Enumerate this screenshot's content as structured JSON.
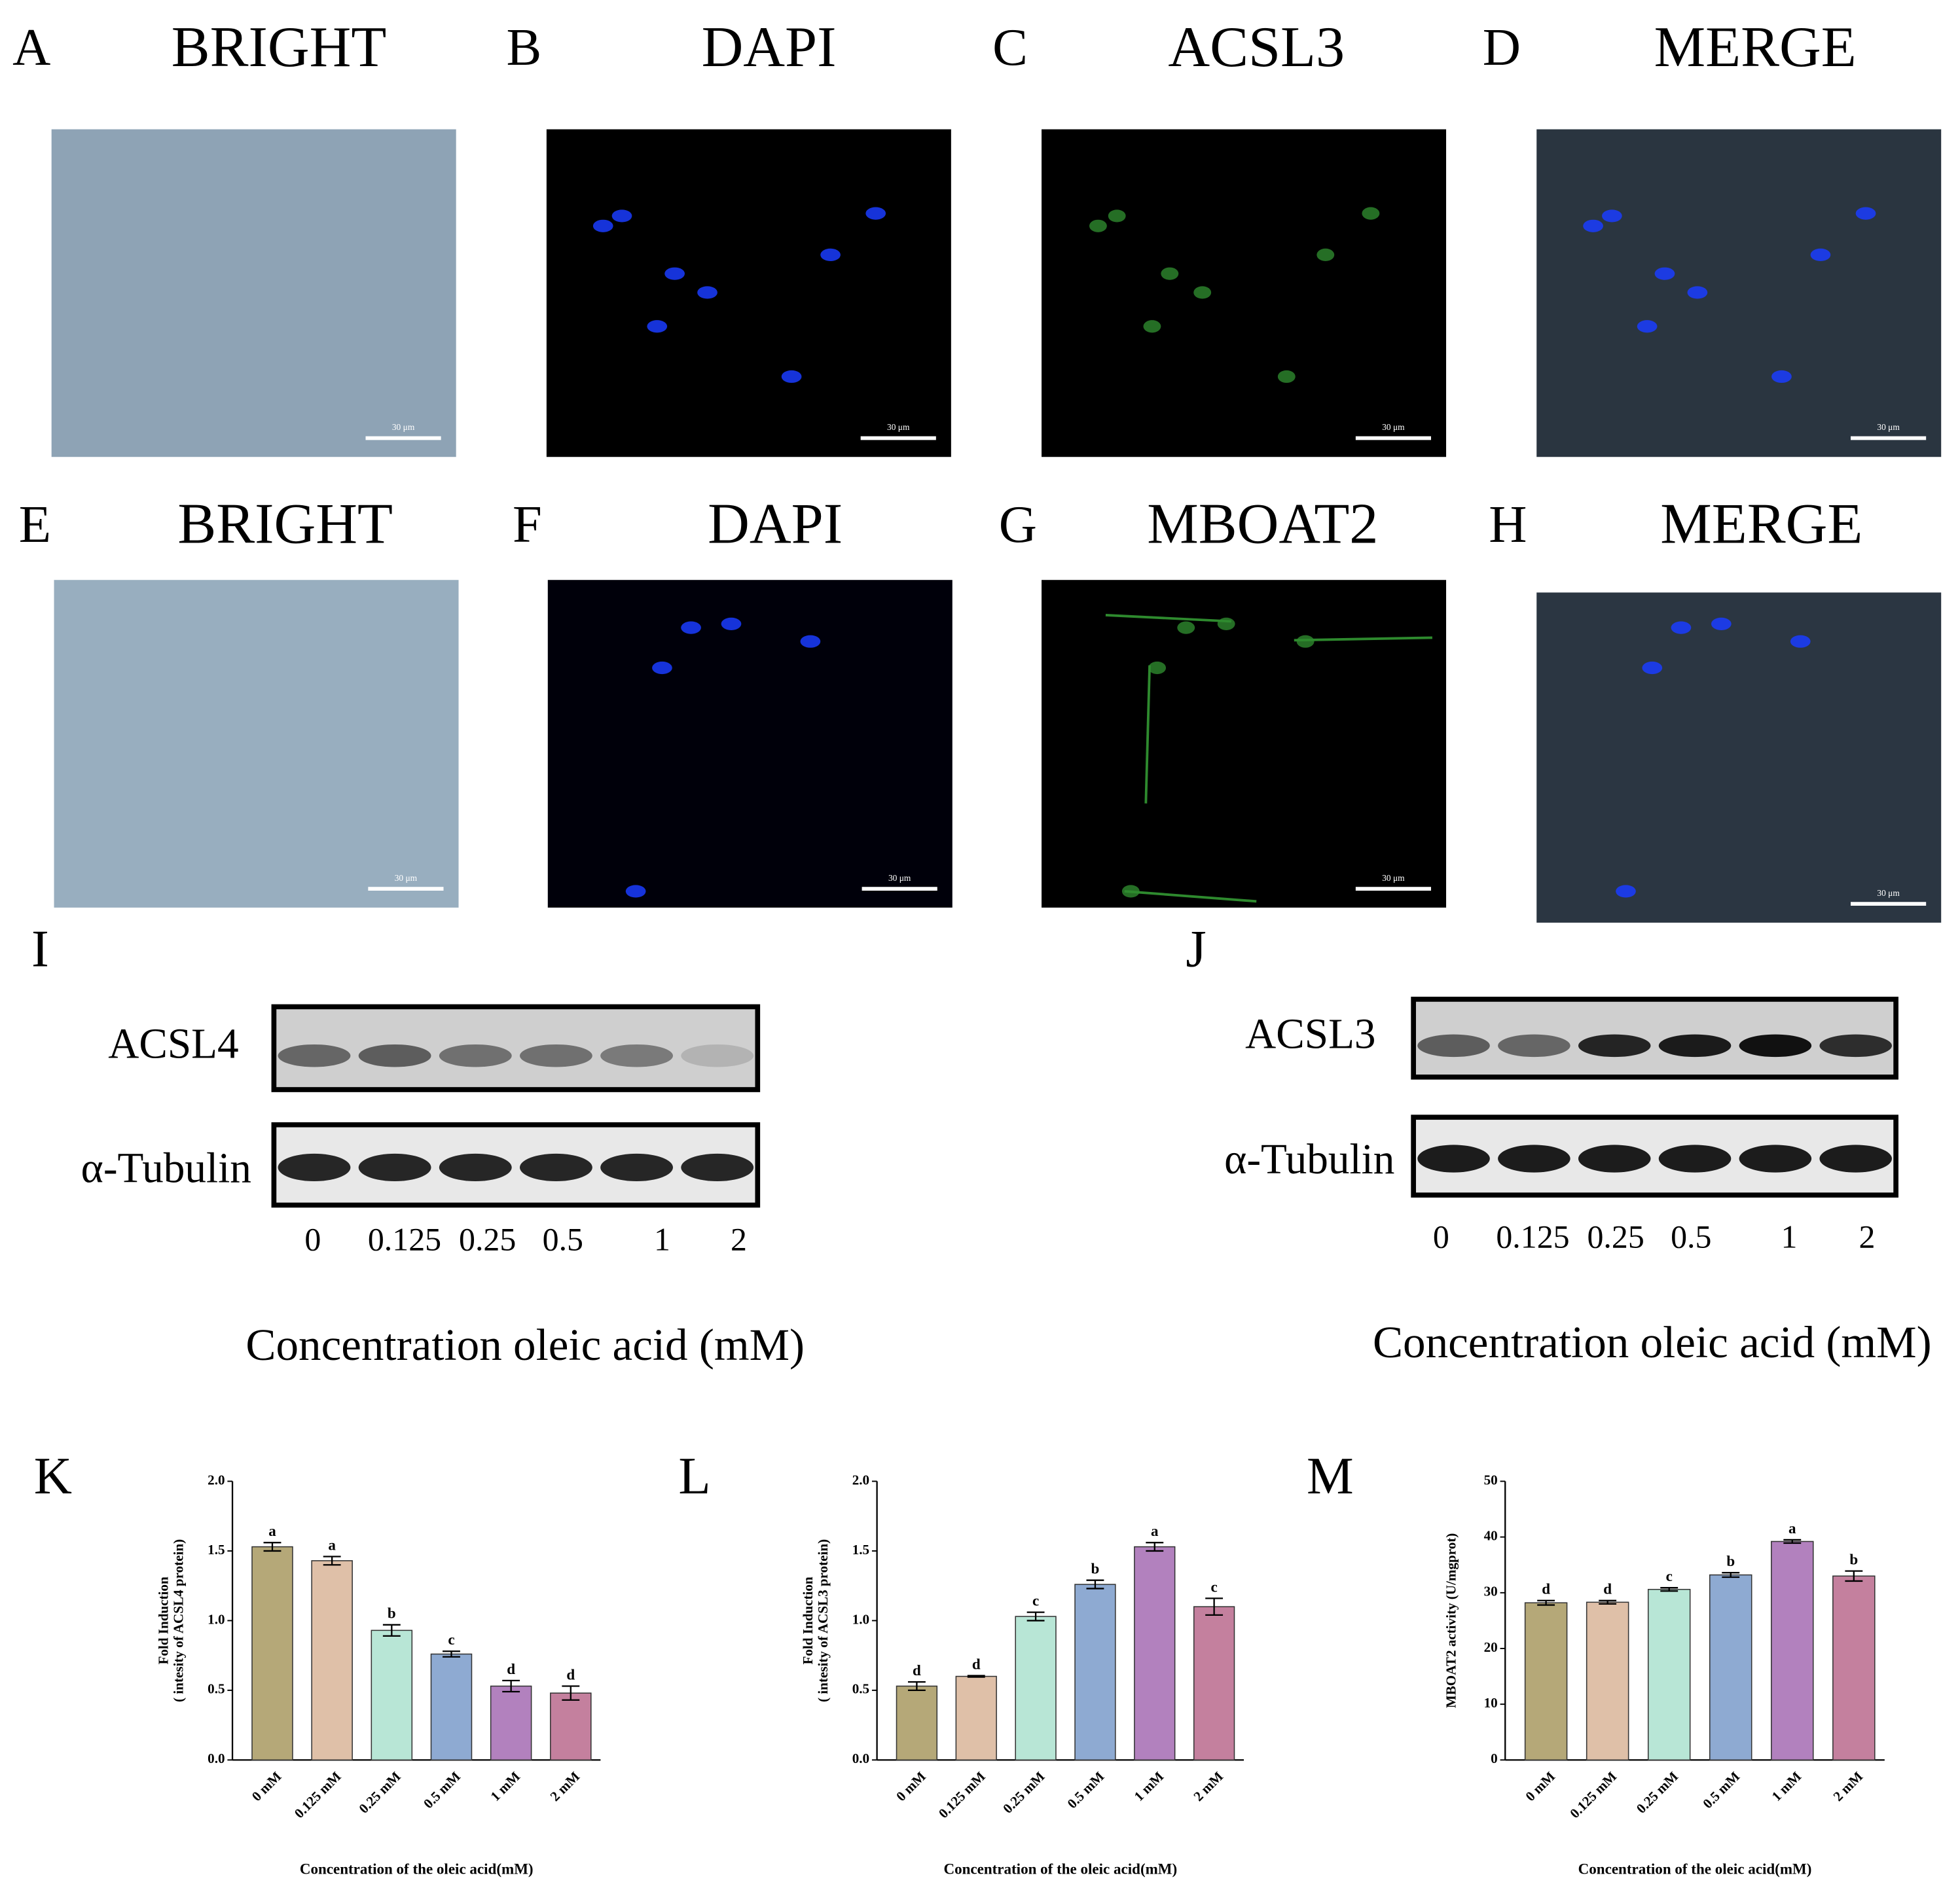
{
  "figure": {
    "panels": [
      {
        "label": "A",
        "title": "BRIGHT",
        "scale_bar": "30 μm"
      },
      {
        "label": "B",
        "title": "DAPI",
        "scale_bar": "30 μm"
      },
      {
        "label": "C",
        "title": "ACSL3",
        "scale_bar": "30 μm"
      },
      {
        "label": "D",
        "title": "MERGE",
        "scale_bar": "30 μm"
      },
      {
        "label": "E",
        "title": "BRIGHT",
        "scale_bar": "30 μm"
      },
      {
        "label": "F",
        "title": "DAPI",
        "scale_bar": "30 μm"
      },
      {
        "label": "G",
        "title": "MBOAT2",
        "scale_bar": "30 μm"
      },
      {
        "label": "H",
        "title": "MERGE",
        "scale_bar": "30 μm"
      }
    ],
    "blots": [
      {
        "label": "I",
        "rows": [
          "ACSL4",
          "α-Tubulin"
        ],
        "lanes": [
          "0",
          "0.125",
          "0.25",
          "0.5",
          "1",
          "2"
        ],
        "x_label": "Concentration oleic acid (mM)"
      },
      {
        "label": "J",
        "rows": [
          "ACSL3",
          "α-Tubulin"
        ],
        "lanes": [
          "0",
          "0.125",
          "0.25",
          "0.5",
          "1",
          "2"
        ],
        "x_label": "Concentration oleic acid (mM)"
      }
    ]
  },
  "chart_data": [
    {
      "type": "bar",
      "panel": "K",
      "ylabel": [
        "Fold Induction",
        "( intesity of ACSL4 protein)"
      ],
      "xlabel": "Concentration of the oleic acid(mM)",
      "categories": [
        "0 mM",
        "0.125 mM",
        "0.25 mM",
        "0.5 mM",
        "1 mM",
        "2 mM"
      ],
      "values": [
        1.53,
        1.43,
        0.93,
        0.76,
        0.53,
        0.48
      ],
      "errors": [
        0.03,
        0.03,
        0.04,
        0.02,
        0.04,
        0.05
      ],
      "annotations": [
        "a",
        "a",
        "b",
        "c",
        "d",
        "d"
      ],
      "colors": [
        "#b5a878",
        "#dfc0a8",
        "#b8e6d6",
        "#8eaad2",
        "#b281be",
        "#c4809e"
      ],
      "ylim": [
        0,
        2
      ],
      "yticks": [
        {
          "value": 0,
          "label": "0.0"
        },
        {
          "value": 0.5,
          "label": "0.5"
        },
        {
          "value": 1,
          "label": "1.0"
        },
        {
          "value": 1.5,
          "label": "1.5"
        },
        {
          "value": 2,
          "label": "2.0"
        }
      ]
    },
    {
      "type": "bar",
      "panel": "L",
      "ylabel": [
        "Fold Induction",
        "( intesity of ACSL3 protein)"
      ],
      "xlabel": "Concentration of the oleic acid(mM)",
      "categories": [
        "0 mM",
        "0.125 mM",
        "0.25 mM",
        "0.5 mM",
        "1 mM",
        "2 mM"
      ],
      "values": [
        0.53,
        0.6,
        1.03,
        1.26,
        1.53,
        1.1
      ],
      "errors": [
        0.03,
        0.005,
        0.03,
        0.03,
        0.03,
        0.06
      ],
      "annotations": [
        "d",
        "d",
        "c",
        "b",
        "a",
        "c"
      ],
      "colors": [
        "#b5a878",
        "#dfc0a8",
        "#b8e6d6",
        "#8eaad2",
        "#b281be",
        "#c4809e"
      ],
      "ylim": [
        0,
        2
      ],
      "yticks": [
        {
          "value": 0,
          "label": "0.0"
        },
        {
          "value": 0.5,
          "label": "0.5"
        },
        {
          "value": 1,
          "label": "1.0"
        },
        {
          "value": 1.5,
          "label": "1.5"
        },
        {
          "value": 2,
          "label": "2.0"
        }
      ]
    },
    {
      "type": "bar",
      "panel": "M",
      "ylabel": [
        "MBOAT2 activity (U/mgprot)"
      ],
      "xlabel": "Concentration of the oleic acid(mM)",
      "categories": [
        "0 mM",
        "0.125 mM",
        "0.25 mM",
        "0.5 mM",
        "1 mM",
        "2 mM"
      ],
      "values": [
        28.2,
        28.3,
        30.6,
        33.2,
        39.2,
        33
      ],
      "errors": [
        0.4,
        0.3,
        0.3,
        0.4,
        0.3,
        0.9
      ],
      "annotations": [
        "d",
        "d",
        "c",
        "b",
        "a",
        "b"
      ],
      "colors": [
        "#b5a878",
        "#dfc0a8",
        "#b8e6d6",
        "#8eaad2",
        "#b281be",
        "#c4809e"
      ],
      "ylim": [
        0,
        50
      ],
      "yticks": [
        0,
        10,
        20,
        30,
        40,
        50
      ]
    }
  ]
}
